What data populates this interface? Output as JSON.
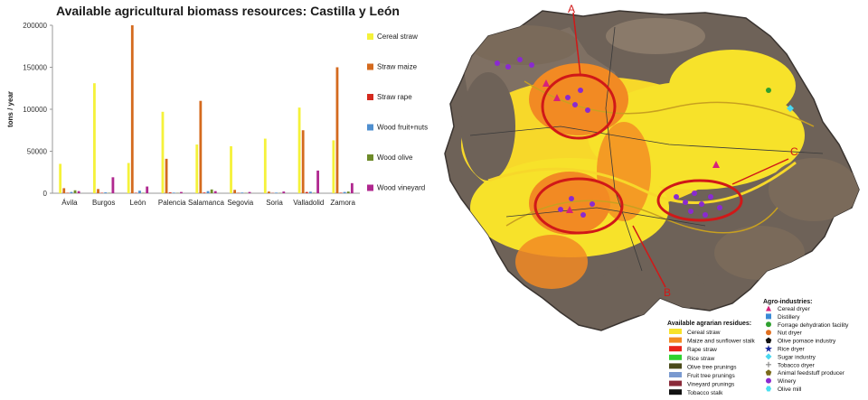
{
  "chart_data": [
    {
      "type": "bar",
      "title": "Available agricultural biomass resources:  Castilla y León",
      "ylabel": "tons / year",
      "xlabel": "",
      "ylim": [
        0,
        200000
      ],
      "yticks": [
        "0",
        "50000",
        "100000",
        "150000",
        "200000"
      ],
      "grid": false,
      "legend_position": "right",
      "categories": [
        "Ávila",
        "Burgos",
        "León",
        "Palencia",
        "Salamanca",
        "Segovia",
        "Soria",
        "Valladolid",
        "Zamora"
      ],
      "series": [
        {
          "name": "Cereal straw",
          "color": "#f5f23a",
          "values": [
            35000,
            131000,
            36000,
            97000,
            58000,
            56000,
            65000,
            102000,
            63000
          ]
        },
        {
          "name": "Straw maize",
          "color": "#d46a1e",
          "values": [
            6000,
            5000,
            200000,
            41000,
            110000,
            4000,
            2000,
            75000,
            150000
          ]
        },
        {
          "name": "Straw rape",
          "color": "#d42a1e",
          "values": [
            500,
            500,
            500,
            1000,
            800,
            400,
            300,
            1500,
            600
          ]
        },
        {
          "name": "Wood fruit+nuts",
          "color": "#4f8fcf",
          "values": [
            1500,
            1000,
            3000,
            700,
            2500,
            800,
            700,
            1800,
            1500
          ]
        },
        {
          "name": "Wood olive",
          "color": "#6e8b2a",
          "values": [
            3500,
            400,
            500,
            300,
            4500,
            300,
            300,
            500,
            2000
          ]
        },
        {
          "name": "Wood vineyard",
          "color": "#b0288f",
          "values": [
            2500,
            19000,
            8000,
            1500,
            2500,
            1500,
            2000,
            27000,
            12000
          ]
        }
      ]
    },
    {
      "type": "map",
      "callouts": [
        "A",
        "B",
        "C"
      ],
      "legend_agrarian": {
        "title": "Available agrarian residues:",
        "items": [
          {
            "label": "Cereal straw",
            "color": "#f7e22a"
          },
          {
            "label": "Maize and sunflower stalk",
            "color": "#f28a23"
          },
          {
            "label": "Rape straw",
            "color": "#e8231b"
          },
          {
            "label": "Rice straw",
            "color": "#2fd12f"
          },
          {
            "label": "Olive tree prunings",
            "color": "#4a4a1a"
          },
          {
            "label": "Fruit tree prunings",
            "color": "#7a9ad0"
          },
          {
            "label": "Vineyard prunings",
            "color": "#8a2a3a"
          },
          {
            "label": "Tobacco stalk",
            "color": "#111111"
          }
        ]
      },
      "legend_industry": {
        "title": "Agro-industries:",
        "items": [
          {
            "label": "Cereal dryer",
            "color": "#d8207a",
            "icon": "triangle-icon"
          },
          {
            "label": "Distillery",
            "color": "#3a8ad6",
            "icon": "square-icon"
          },
          {
            "label": "Forrage dehydration facility",
            "color": "#2fa02f",
            "icon": "circle-icon"
          },
          {
            "label": "Nut dryer",
            "color": "#e07020",
            "icon": "circle-icon"
          },
          {
            "label": "Olive pomace industry",
            "color": "#111111",
            "icon": "pentagon-icon"
          },
          {
            "label": "Rice dryer",
            "color": "#1a2aa0",
            "icon": "star-icon"
          },
          {
            "label": "Sugar industry",
            "color": "#4ad8f0",
            "icon": "diamond-icon"
          },
          {
            "label": "Tobacco dryer",
            "color": "#888888",
            "icon": "cross-icon"
          },
          {
            "label": "Animal feedstuff producer",
            "color": "#7a6a1a",
            "icon": "pentagon-icon"
          },
          {
            "label": "Winery",
            "color": "#8a2ad0",
            "icon": "circle-icon"
          },
          {
            "label": "Olive mill",
            "color": "#4ae0f0",
            "icon": "hexagon-icon"
          }
        ]
      }
    }
  ]
}
